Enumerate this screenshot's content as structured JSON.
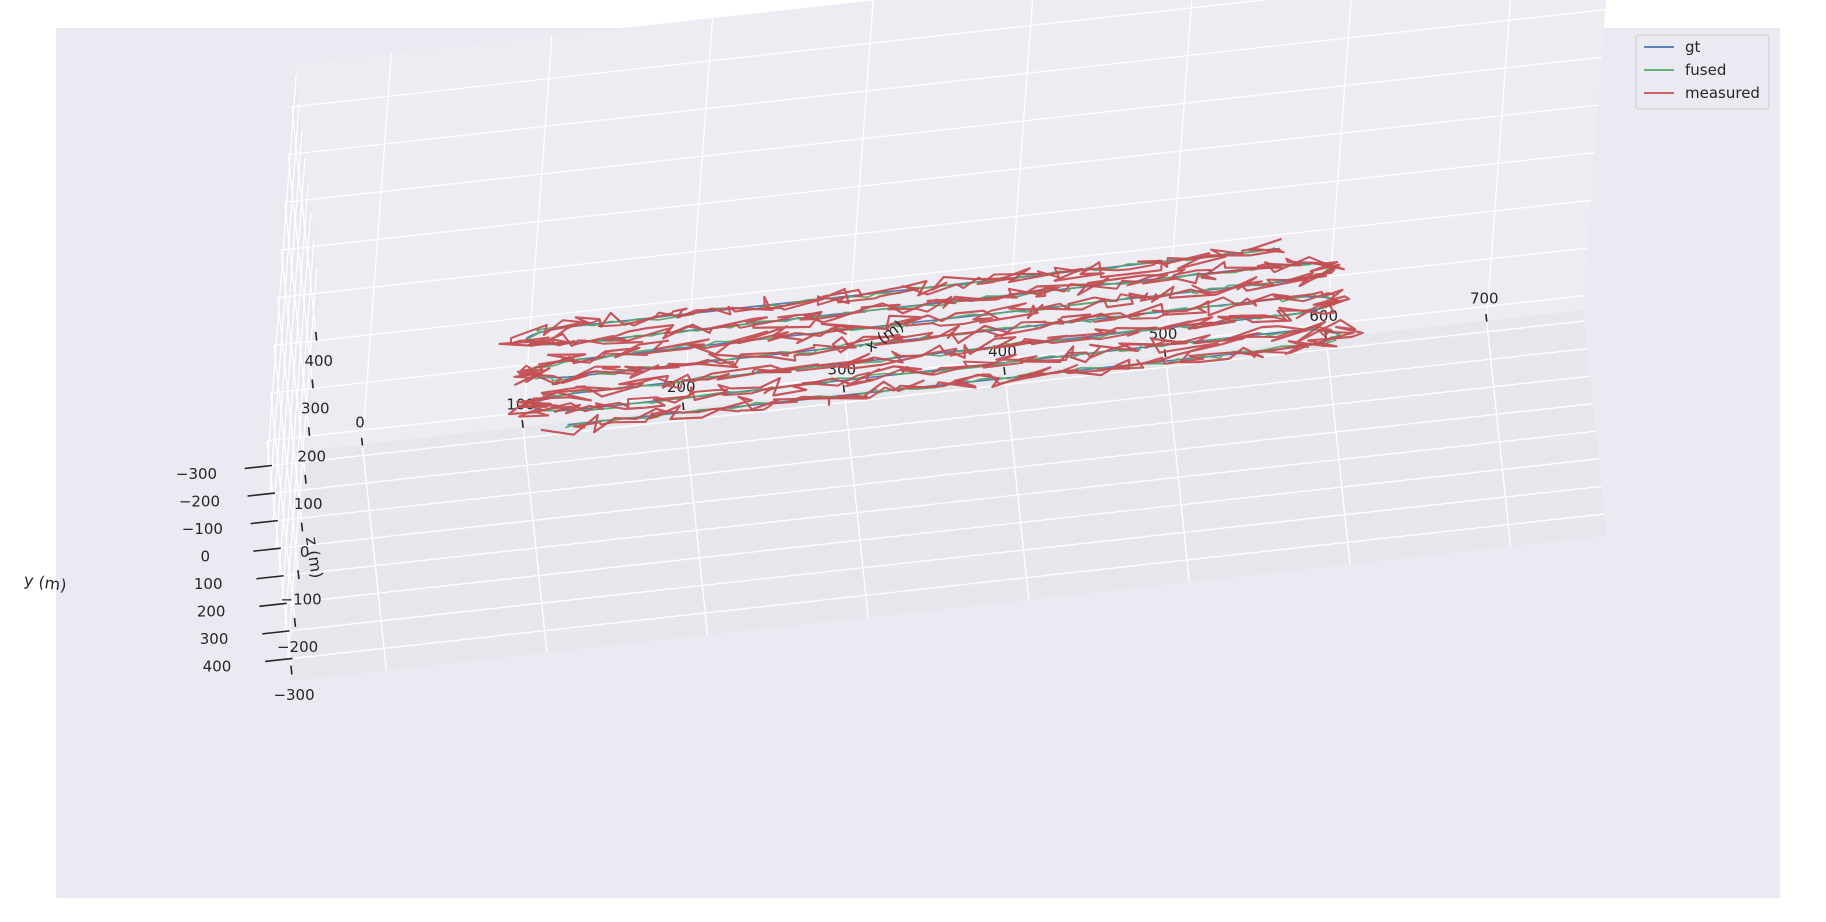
{
  "chart_data": {
    "type": "line",
    "projection": "3d",
    "title": "",
    "xlabel": "x (m)",
    "ylabel": "y (m)",
    "zlabel": "z (m)",
    "x_ticks": [
      0,
      100,
      200,
      300,
      400,
      500,
      600,
      700
    ],
    "y_ticks": [
      -300,
      -200,
      -100,
      0,
      100,
      200,
      300,
      400
    ],
    "z_ticks": [
      -300,
      -200,
      -100,
      0,
      100,
      200,
      300,
      400
    ],
    "xlim": [
      -60,
      760
    ],
    "ylim": [
      -340,
      480
    ],
    "zlim": [
      -330,
      490
    ],
    "grid": true,
    "legend_position": "top-right",
    "background_color": "#eaeaf2",
    "pane_colors": {
      "floor": "#e6e6ed",
      "back_wall": "#ececf2",
      "side_wall": "#e9e9f0"
    },
    "path": {
      "start": [
        110,
        230,
        0
      ],
      "loops": {
        "x_min": 120,
        "x_max": 560,
        "lanes_y": [
          240,
          180,
          120,
          60,
          0,
          -60,
          -120
        ],
        "z": 0
      },
      "end": [
        560,
        -120,
        0
      ]
    },
    "series": [
      {
        "name": "gt",
        "color": "#4c72b0",
        "style": "smooth"
      },
      {
        "name": "fused",
        "color": "#55a868",
        "style": "slightly-noisy"
      },
      {
        "name": "measured",
        "color": "#c44e52",
        "style": "noisy"
      }
    ]
  }
}
